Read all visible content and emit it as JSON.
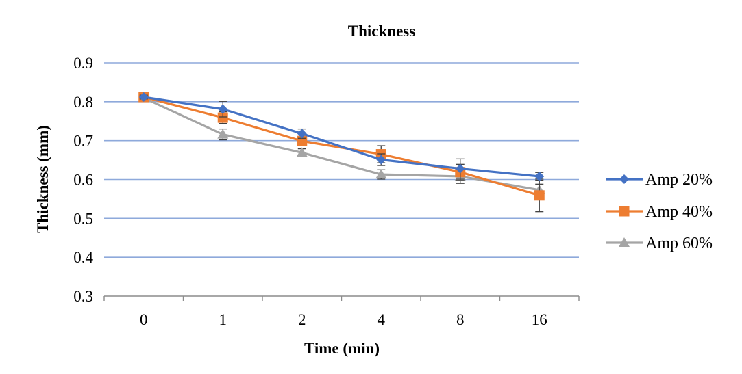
{
  "chart_data": {
    "type": "line",
    "title": "Thickness",
    "xlabel": "Time (min)",
    "ylabel": "Thickness (mm)",
    "categories": [
      "0",
      "1",
      "2",
      "4",
      "8",
      "16"
    ],
    "ylim": [
      0.3,
      0.9
    ],
    "yticks": [
      "0.3",
      "0.4",
      "0.5",
      "0.6",
      "0.7",
      "0.8",
      "0.9"
    ],
    "grid": true,
    "legend_position": "right",
    "series": [
      {
        "name": "Amp 20%",
        "color": "#4472C4",
        "marker": "diamond",
        "values": [
          0.812,
          0.781,
          0.718,
          0.651,
          0.628,
          0.608
        ],
        "errors": [
          0.005,
          0.02,
          0.012,
          0.015,
          0.025,
          0.01
        ]
      },
      {
        "name": "Amp 40%",
        "color": "#ED7D31",
        "marker": "square",
        "values": [
          0.812,
          0.759,
          0.699,
          0.665,
          0.619,
          0.559
        ],
        "errors": [
          0.005,
          0.015,
          0.012,
          0.022,
          0.02,
          0.042
        ]
      },
      {
        "name": "Amp 60%",
        "color": "#A5A5A5",
        "marker": "triangle",
        "values": [
          0.81,
          0.716,
          0.669,
          0.613,
          0.608,
          0.573
        ],
        "errors": [
          0.005,
          0.014,
          0.01,
          0.012,
          0.018,
          0.015
        ]
      }
    ]
  }
}
